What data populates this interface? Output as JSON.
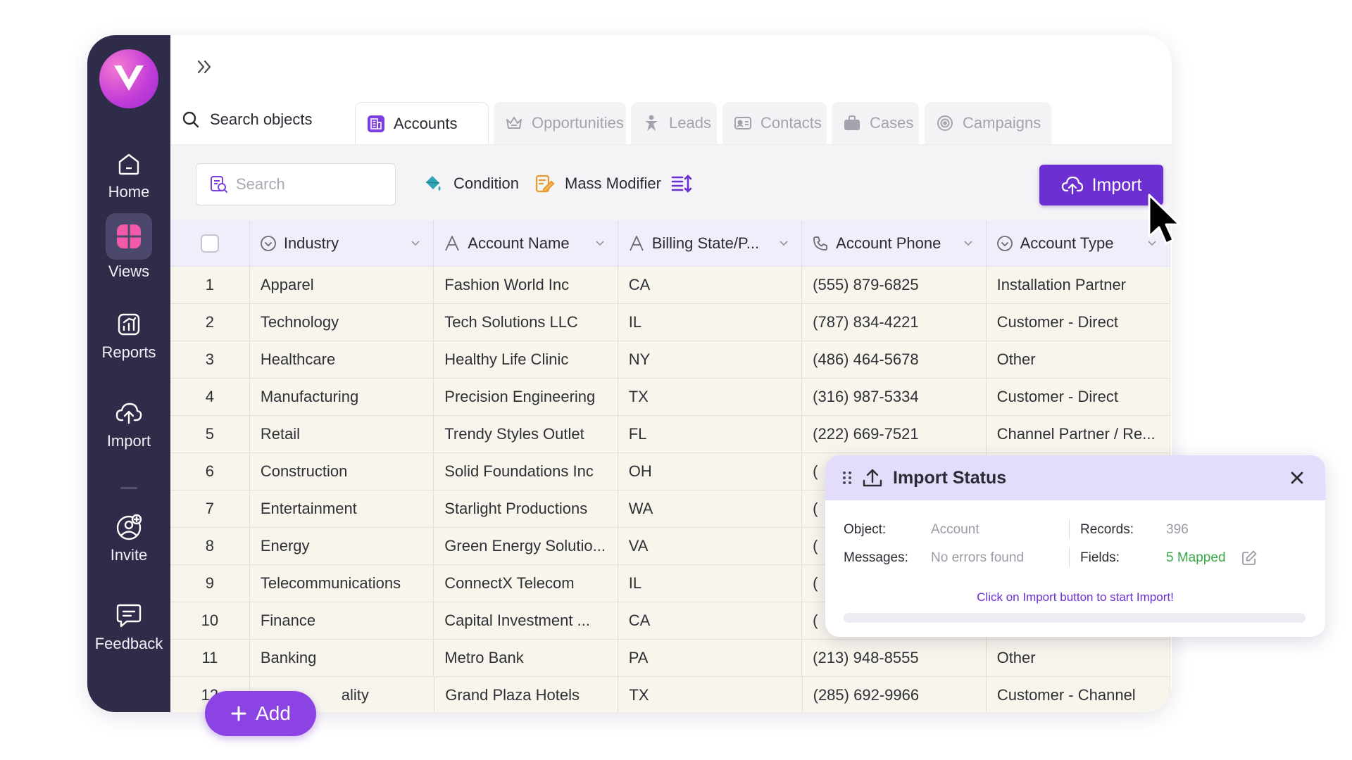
{
  "sidebar": {
    "items": [
      {
        "label": "Home",
        "icon": "home-icon"
      },
      {
        "label": "Views",
        "icon": "grid-icon",
        "active": true
      },
      {
        "label": "Reports",
        "icon": "chart-icon"
      },
      {
        "label": "Import",
        "icon": "upload-cloud-icon"
      },
      {
        "label": "Invite",
        "icon": "add-user-icon"
      },
      {
        "label": "Feedback",
        "icon": "chat-icon"
      }
    ]
  },
  "tabs": {
    "search_label": "Search objects",
    "items": [
      {
        "label": "Accounts",
        "icon": "building-icon",
        "active": true
      },
      {
        "label": "Opportunities",
        "icon": "crown-icon"
      },
      {
        "label": "Leads",
        "icon": "person-star-icon"
      },
      {
        "label": "Contacts",
        "icon": "id-card-icon"
      },
      {
        "label": "Cases",
        "icon": "briefcase-icon"
      },
      {
        "label": "Campaigns",
        "icon": "target-icon"
      }
    ]
  },
  "toolbar": {
    "search_placeholder": "Search",
    "condition_label": "Condition",
    "mass_modifier_label": "Mass Modifier",
    "import_label": "Import"
  },
  "table": {
    "columns": [
      "Industry",
      "Account Name",
      "Billing State/P...",
      "Account Phone",
      "Account Type"
    ],
    "rows": [
      {
        "num": "1",
        "industry": "Apparel",
        "name": "Fashion World Inc",
        "state": "CA",
        "phone": "(555) 879-6825",
        "type": "Installation Partner"
      },
      {
        "num": "2",
        "industry": "Technology",
        "name": "Tech Solutions LLC",
        "state": "IL",
        "phone": "(787) 834-4221",
        "type": "Customer - Direct"
      },
      {
        "num": "3",
        "industry": "Healthcare",
        "name": "Healthy Life Clinic",
        "state": "NY",
        "phone": "(486) 464-5678",
        "type": "Other"
      },
      {
        "num": "4",
        "industry": "Manufacturing",
        "name": "Precision Engineering",
        "state": "TX",
        "phone": "(316) 987-5334",
        "type": "Customer - Direct"
      },
      {
        "num": "5",
        "industry": "Retail",
        "name": "Trendy Styles Outlet",
        "state": "FL",
        "phone": "(222) 669-7521",
        "type": "Channel Partner / Re..."
      },
      {
        "num": "6",
        "industry": "Construction",
        "name": "Solid Foundations Inc",
        "state": "OH",
        "phone": "(",
        "type": ""
      },
      {
        "num": "7",
        "industry": "Entertainment",
        "name": "Starlight Productions",
        "state": "WA",
        "phone": "(",
        "type": ""
      },
      {
        "num": "8",
        "industry": "Energy",
        "name": "Green Energy Solutio...",
        "state": "VA",
        "phone": "(",
        "type": ""
      },
      {
        "num": "9",
        "industry": "Telecommunications",
        "name": "ConnectX Telecom",
        "state": "IL",
        "phone": "(",
        "type": ""
      },
      {
        "num": "10",
        "industry": "Finance",
        "name": "Capital Investment ...",
        "state": "CA",
        "phone": "(",
        "type": ""
      },
      {
        "num": "11",
        "industry": "Banking",
        "name": "Metro Bank",
        "state": "PA",
        "phone": "(213) 948-8555",
        "type": "Other"
      },
      {
        "num": "12",
        "industry": "ality",
        "name": "Grand Plaza Hotels",
        "state": "TX",
        "phone": "(285) 692-9966",
        "type": "Customer - Channel"
      }
    ]
  },
  "add_button": {
    "label": "Add"
  },
  "import_status": {
    "title": "Import Status",
    "object_label": "Object:",
    "object_value": "Account",
    "records_label": "Records:",
    "records_value": "396",
    "messages_label": "Messages:",
    "messages_value": "No errors found",
    "fields_label": "Fields:",
    "fields_value": "5 Mapped",
    "hint": "Click on Import button to start Import!",
    "progress": 0
  },
  "colors": {
    "sidebar_bg": "#2e2c48",
    "accent": "#6c2fd1",
    "add_button": "#8b43e3",
    "row_bg": "#f8f6ec",
    "mapped_green": "#3aa84a"
  }
}
